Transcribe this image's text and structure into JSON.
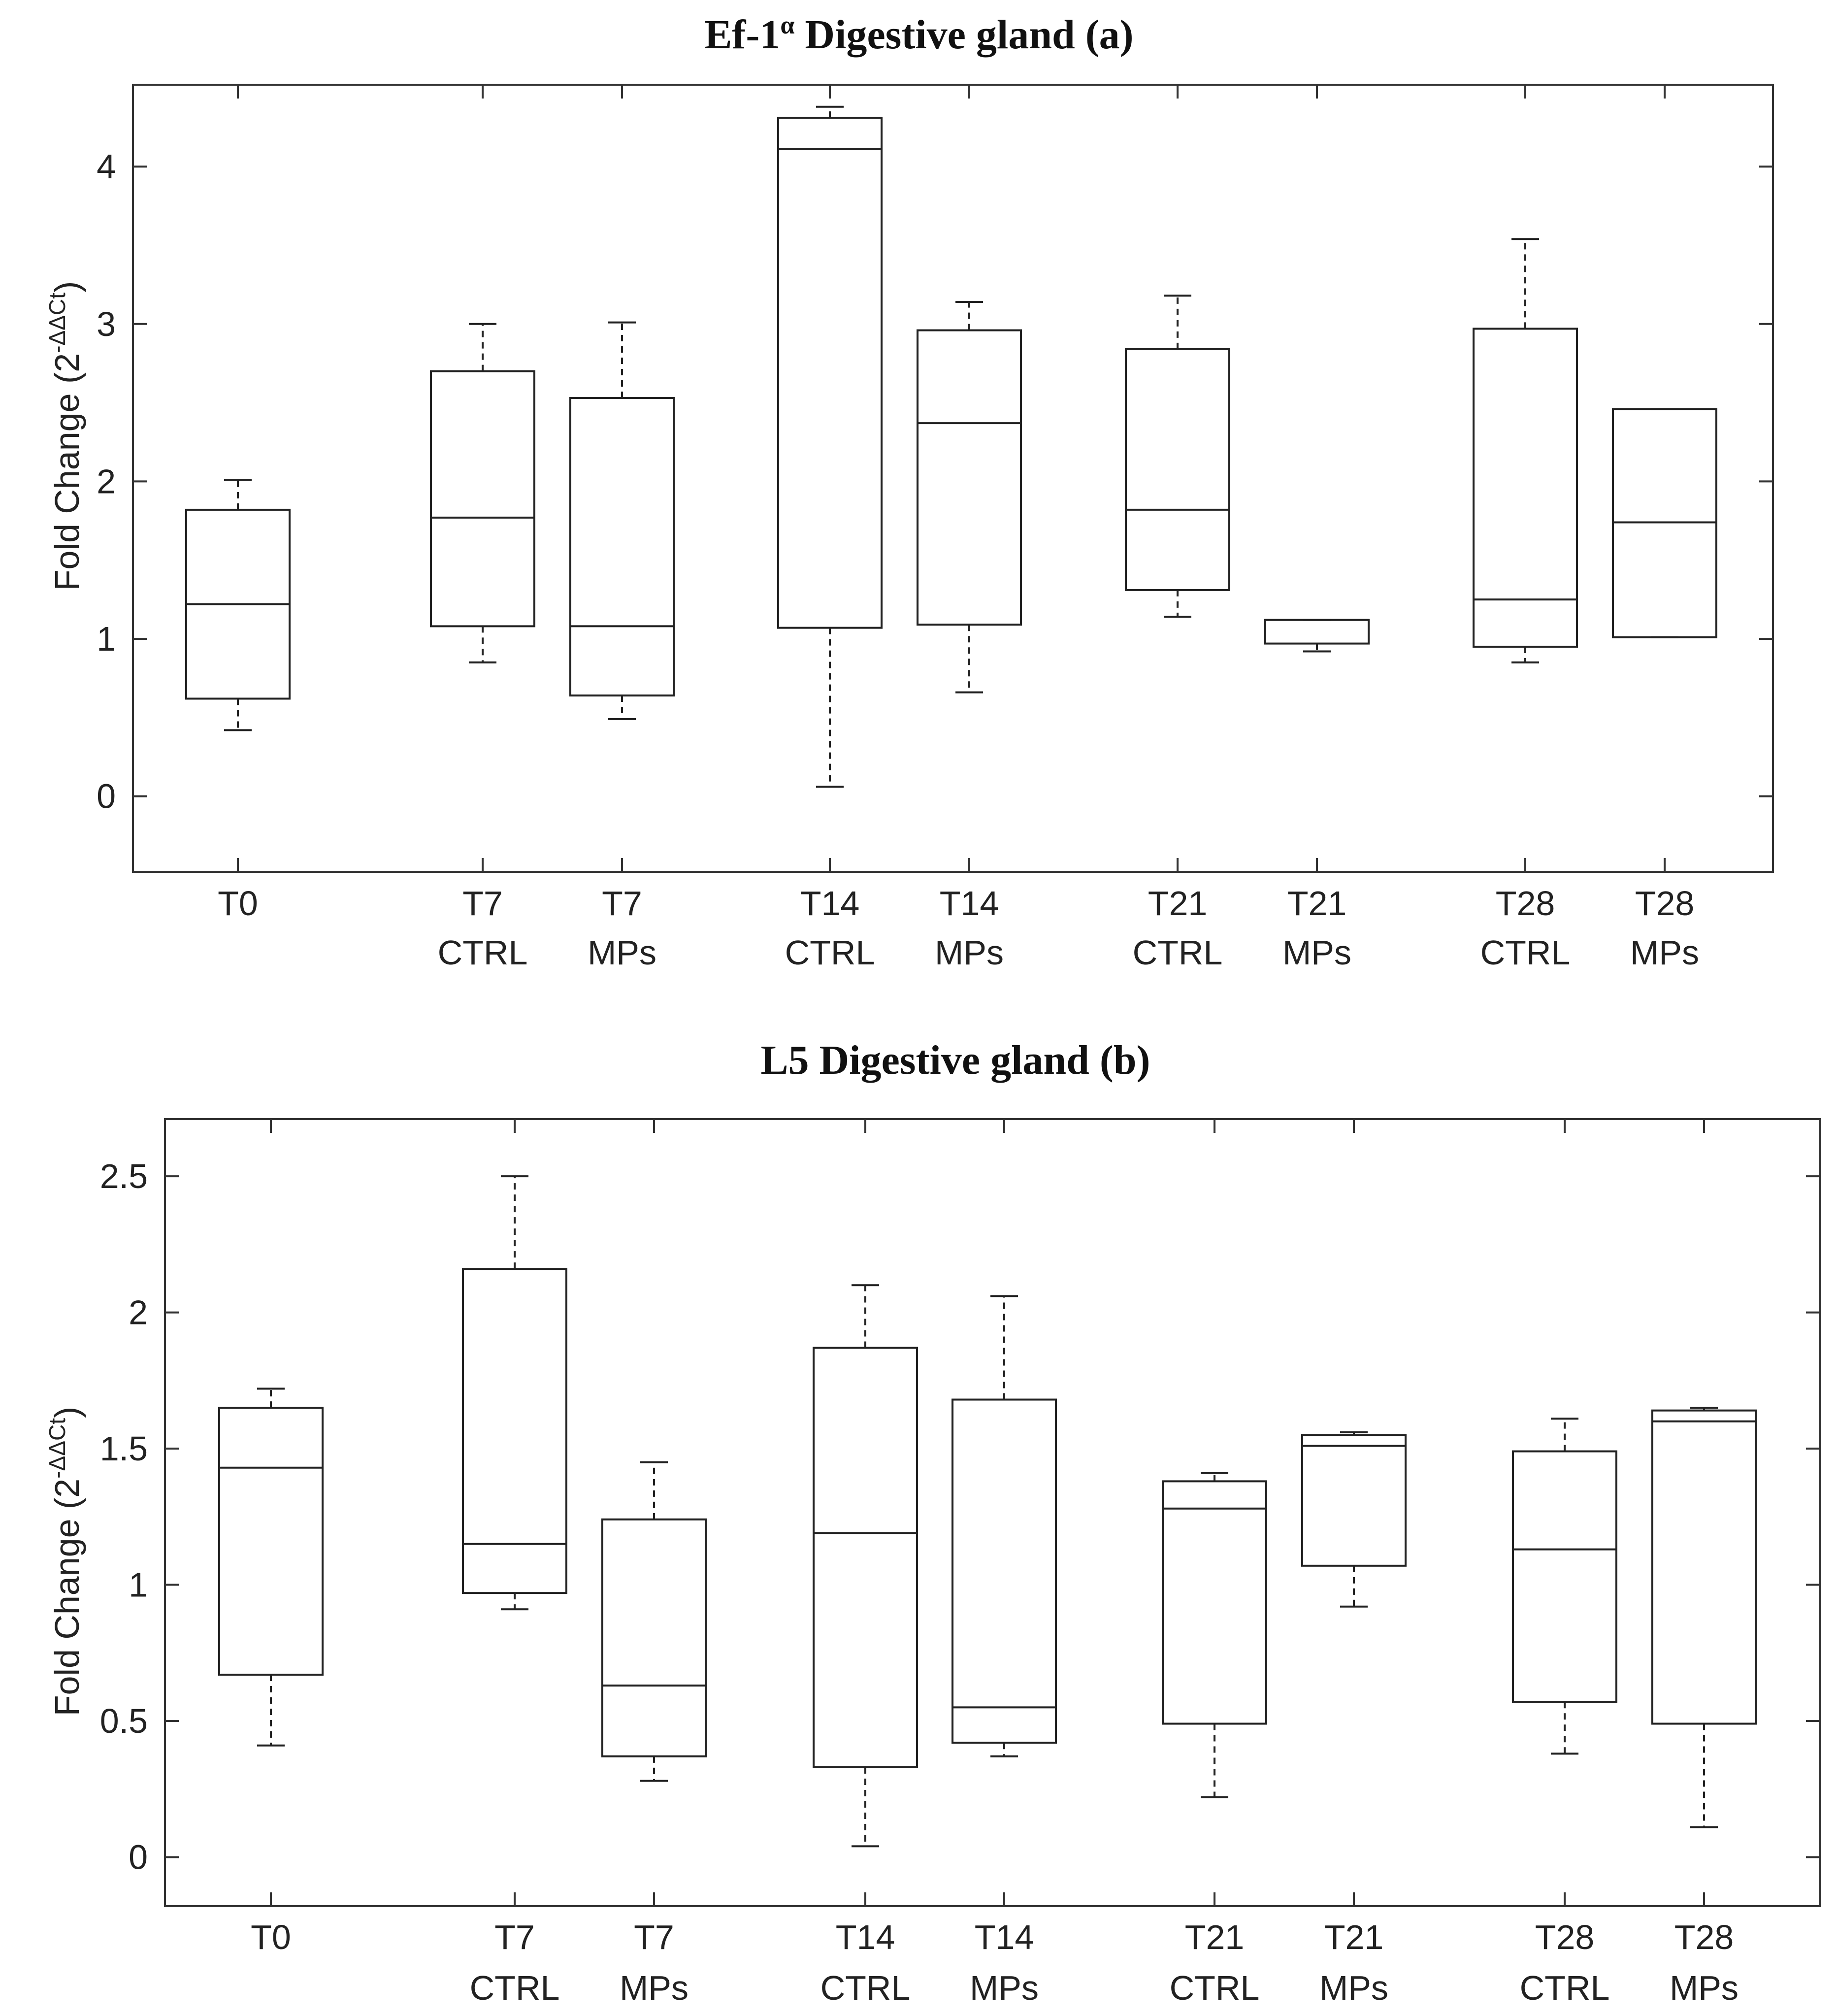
{
  "chart_data": [
    {
      "type": "boxplot",
      "title": "Ef-1",
      "title_superscript": "α",
      "title_rest": " Digestive gland (a)",
      "ylabel": "Fold Change (2",
      "ylabel_sup": "-ΔΔCt",
      "ylabel_end": ")",
      "ylim": [
        -0.48,
        4.52
      ],
      "yticks": [
        0,
        1,
        2,
        3,
        4
      ],
      "grid": false,
      "categories": [
        {
          "line1": "T0",
          "line2": ""
        },
        {
          "line1": "T7",
          "line2": "CTRL"
        },
        {
          "line1": "T7",
          "line2": "MPs"
        },
        {
          "line1": "T14",
          "line2": "CTRL"
        },
        {
          "line1": "T14",
          "line2": "MPs"
        },
        {
          "line1": "T21",
          "line2": "CTRL"
        },
        {
          "line1": "T21",
          "line2": "MPs"
        },
        {
          "line1": "T28",
          "line2": "CTRL"
        },
        {
          "line1": "T28",
          "line2": "MPs"
        }
      ],
      "boxes": [
        {
          "min": 0.42,
          "q1": 0.62,
          "median": 1.22,
          "q3": 1.82,
          "max": 2.01
        },
        {
          "min": 0.85,
          "q1": 1.08,
          "median": 1.77,
          "q3": 2.7,
          "max": 3.0
        },
        {
          "min": 0.49,
          "q1": 0.64,
          "median": 1.08,
          "q3": 2.53,
          "max": 3.01
        },
        {
          "min": 0.06,
          "q1": 1.07,
          "median": 4.11,
          "q3": 4.31,
          "max": 4.38
        },
        {
          "min": 0.66,
          "q1": 1.09,
          "median": 2.37,
          "q3": 2.96,
          "max": 3.14
        },
        {
          "min": 1.14,
          "q1": 1.31,
          "median": 1.82,
          "q3": 2.84,
          "max": 3.18
        },
        {
          "min": 0.92,
          "q1": 0.97,
          "median": 1.12,
          "q3": 1.12,
          "max": 1.12
        },
        {
          "min": 0.85,
          "q1": 0.95,
          "median": 1.25,
          "q3": 2.97,
          "max": 3.54
        },
        {
          "min": 1.01,
          "q1": 1.01,
          "median": 1.74,
          "q3": 2.46,
          "max": 2.46
        }
      ]
    },
    {
      "type": "boxplot",
      "title": "L5 Digestive gland (b)",
      "ylabel": "Fold Change (2",
      "ylabel_sup": "-ΔΔCt",
      "ylabel_end": ")",
      "ylim": [
        -0.18,
        2.71
      ],
      "yticks": [
        0,
        0.5,
        1,
        1.5,
        2,
        2.5
      ],
      "grid": false,
      "categories": [
        {
          "line1": "T0",
          "line2": ""
        },
        {
          "line1": "T7",
          "line2": "CTRL"
        },
        {
          "line1": "T7",
          "line2": "MPs"
        },
        {
          "line1": "T14",
          "line2": "CTRL"
        },
        {
          "line1": "T14",
          "line2": "MPs"
        },
        {
          "line1": "T21",
          "line2": "CTRL"
        },
        {
          "line1": "T21",
          "line2": "MPs"
        },
        {
          "line1": "T28",
          "line2": "CTRL"
        },
        {
          "line1": "T28",
          "line2": "MPs"
        }
      ],
      "boxes": [
        {
          "min": 0.41,
          "q1": 0.67,
          "median": 1.43,
          "q3": 1.65,
          "max": 1.72
        },
        {
          "min": 0.91,
          "q1": 0.97,
          "median": 1.15,
          "q3": 2.16,
          "max": 2.5
        },
        {
          "min": 0.28,
          "q1": 0.37,
          "median": 0.63,
          "q3": 1.24,
          "max": 1.45
        },
        {
          "min": 0.04,
          "q1": 0.33,
          "median": 1.19,
          "q3": 1.87,
          "max": 2.1
        },
        {
          "min": 0.37,
          "q1": 0.42,
          "median": 0.55,
          "q3": 1.68,
          "max": 2.06
        },
        {
          "min": 0.22,
          "q1": 0.49,
          "median": 1.28,
          "q3": 1.38,
          "max": 1.41
        },
        {
          "min": 0.92,
          "q1": 1.07,
          "median": 1.51,
          "q3": 1.55,
          "max": 1.56
        },
        {
          "min": 0.38,
          "q1": 0.57,
          "median": 1.13,
          "q3": 1.49,
          "max": 1.61
        },
        {
          "min": 0.11,
          "q1": 0.49,
          "median": 1.6,
          "q3": 1.64,
          "max": 1.65
        }
      ]
    }
  ]
}
